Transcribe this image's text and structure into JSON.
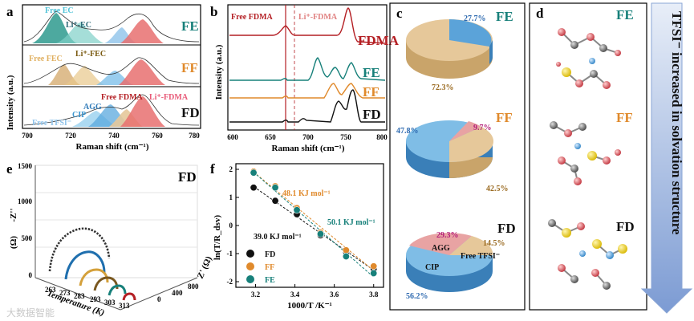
{
  "panels": {
    "a": {
      "letter": "a",
      "ylabel": "Intensity (a.u.)",
      "xlabel": "Raman shift (cm⁻¹)",
      "xticks": [
        "700",
        "720",
        "740",
        "760",
        "780"
      ],
      "rows": [
        {
          "tag": "FE",
          "tag_color": "#17807a",
          "labels": [
            "Free EC",
            "Li⁺-EC"
          ]
        },
        {
          "tag": "FF",
          "tag_color": "#e08a2c",
          "labels": [
            "Free FEC",
            "Li⁺-FEC"
          ]
        },
        {
          "tag": "FD",
          "tag_color": "#111111",
          "labels": [
            "Free FDMA",
            "Li⁺-FDMA",
            "AGG",
            "CIP",
            "Free TFSI⁻"
          ]
        }
      ]
    },
    "b": {
      "letter": "b",
      "ylabel": "Intensity (a.u.)",
      "xlabel": "Raman shift (cm⁻¹)",
      "xticks": [
        "600",
        "650",
        "700",
        "750",
        "800"
      ],
      "annotations": [
        "Free FDMA",
        "Li⁺-FDMA"
      ],
      "traces": [
        {
          "name": "FDMA",
          "color": "#b41f24"
        },
        {
          "name": "FE",
          "color": "#17807a"
        },
        {
          "name": "FF",
          "color": "#e08a2c"
        },
        {
          "name": "FD",
          "color": "#111111"
        }
      ]
    },
    "c": {
      "letter": "c",
      "pies": [
        {
          "tag": "FE",
          "tag_color": "#17807a",
          "slices": [
            {
              "value": "27.7%",
              "label": "",
              "color": "#5ba3d9"
            },
            {
              "value": "72.3%",
              "label": "",
              "color": "#e6c89a"
            }
          ]
        },
        {
          "tag": "FF",
          "tag_color": "#e08a2c",
          "slices": [
            {
              "value": "9.7%",
              "label": "",
              "color": "#e8a3a3"
            },
            {
              "value": "42.5%",
              "label": "",
              "color": "#e6c89a"
            },
            {
              "value": "47.8%",
              "label": "",
              "color": "#5ba3d9"
            }
          ]
        },
        {
          "tag": "FD",
          "tag_color": "#111111",
          "slices": [
            {
              "value": "29.3%",
              "label": "AGG",
              "color": "#e8a3a3"
            },
            {
              "value": "14.5%",
              "label": "Free TFSI⁻",
              "color": "#e6c89a"
            },
            {
              "value": "56.2%",
              "label": "CIP",
              "color": "#5ba3d9"
            }
          ]
        }
      ]
    },
    "d": {
      "letter": "d",
      "tags": [
        {
          "tag": "FE",
          "color": "#17807a"
        },
        {
          "tag": "FF",
          "color": "#e08a2c"
        },
        {
          "tag": "FD",
          "color": "#111111"
        }
      ],
      "arrow_text": "TFSI⁻ increased in solvation structure"
    },
    "e": {
      "letter": "e",
      "tag": "FD",
      "zaxis_label": "-Z''",
      "zaxis_unit": "(Ω)",
      "zticks": [
        "0",
        "500",
        "1000",
        "1500"
      ],
      "xaxis_label": "Z' (Ω)",
      "xticks": [
        "0",
        "400",
        "800"
      ],
      "taxis_label": "Temperature (K)",
      "temps": [
        "263",
        "273",
        "283",
        "293",
        "303",
        "313"
      ],
      "watermark": "大数据智能"
    },
    "f": {
      "letter": "f",
      "ylabel": "ln(T/R_dsv)",
      "xlabel": "1000/T /K⁻¹",
      "xticks": [
        "3.2",
        "3.4",
        "3.6",
        "3.8"
      ],
      "yticks": [
        "-2",
        "-1",
        "0",
        "1",
        "2"
      ],
      "annotations": [
        {
          "text": "48.1 KJ mol⁻¹",
          "color": "#e08a2c"
        },
        {
          "text": "50.1 KJ mol⁻¹",
          "color": "#17807a"
        },
        {
          "text": "39.0 KJ mol⁻¹",
          "color": "#111111"
        }
      ],
      "legend": [
        {
          "name": "FD",
          "color": "#111111"
        },
        {
          "name": "FF",
          "color": "#e08a2c"
        },
        {
          "name": "FE",
          "color": "#17807a"
        }
      ]
    }
  },
  "chart_data": [
    {
      "type": "scatter",
      "title": "f",
      "xlabel": "1000/T /K⁻¹",
      "ylabel": "ln(T/R_dsv)",
      "xlim": [
        3.1,
        3.85
      ],
      "ylim": [
        -2.2,
        2.2
      ],
      "series": [
        {
          "name": "FD",
          "x": [
            3.19,
            3.3,
            3.41,
            3.53,
            3.66,
            3.8
          ],
          "y": [
            1.35,
            0.88,
            0.4,
            -0.35,
            -0.95,
            -1.55
          ]
        },
        {
          "name": "FF",
          "x": [
            3.19,
            3.3,
            3.41,
            3.53,
            3.66,
            3.8
          ],
          "y": [
            1.92,
            1.4,
            0.62,
            -0.25,
            -0.88,
            -1.45
          ]
        },
        {
          "name": "FE",
          "x": [
            3.19,
            3.3,
            3.41,
            3.53,
            3.66,
            3.8
          ],
          "y": [
            1.88,
            1.35,
            0.55,
            -0.3,
            -1.1,
            -1.7
          ]
        }
      ]
    },
    {
      "type": "pie",
      "title": "c",
      "series": [
        {
          "name": "FE",
          "values": [
            27.7,
            72.3
          ]
        },
        {
          "name": "FF",
          "values": [
            9.7,
            42.5,
            47.8
          ]
        },
        {
          "name": "FD",
          "values": [
            29.3,
            14.5,
            56.2
          ]
        }
      ]
    }
  ]
}
